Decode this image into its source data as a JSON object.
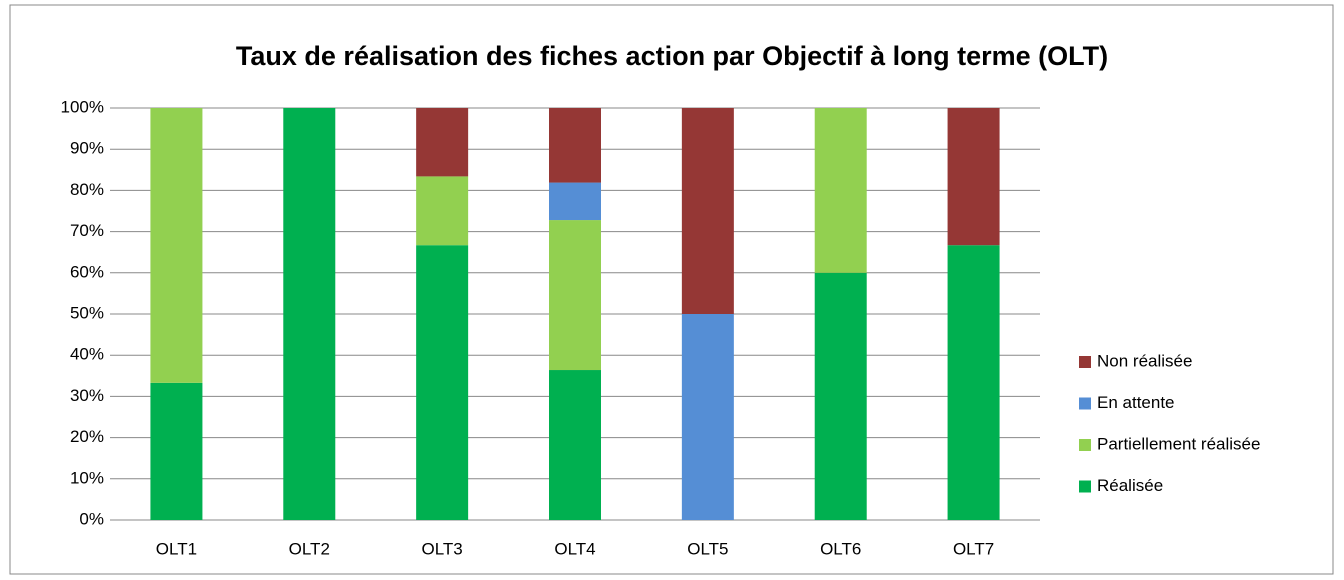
{
  "chart_data": {
    "type": "stacked_bar",
    "title": "Taux de réalisation des fiches action par Objectif à long terme (OLT)",
    "categories": [
      "OLT1",
      "OLT2",
      "OLT3",
      "OLT4",
      "OLT5",
      "OLT6",
      "OLT7"
    ],
    "series": [
      {
        "name": "Réalisée",
        "color": "#00b050",
        "values": [
          33.3,
          100,
          66.7,
          36.4,
          0,
          60,
          66.7
        ]
      },
      {
        "name": "Partiellement réalisée",
        "color": "#92d050",
        "values": [
          66.7,
          0,
          16.7,
          36.4,
          0,
          40,
          0
        ]
      },
      {
        "name": "En attente",
        "color": "#558ed5",
        "values": [
          0,
          0,
          0,
          9.1,
          50,
          0,
          0
        ]
      },
      {
        "name": "Non réalisée",
        "color": "#953735",
        "values": [
          0,
          0,
          16.6,
          18.1,
          50,
          0,
          33.3
        ]
      }
    ],
    "ylim": [
      0,
      100
    ],
    "yticks": [
      {
        "value": 0,
        "label": "0%"
      },
      {
        "value": 10,
        "label": "10%"
      },
      {
        "value": 20,
        "label": "20%"
      },
      {
        "value": 30,
        "label": "30%"
      },
      {
        "value": 40,
        "label": "40%"
      },
      {
        "value": 50,
        "label": "50%"
      },
      {
        "value": 60,
        "label": "60%"
      },
      {
        "value": 70,
        "label": "70%"
      },
      {
        "value": 80,
        "label": "80%"
      },
      {
        "value": 90,
        "label": "90%"
      },
      {
        "value": 100,
        "label": "100%"
      }
    ],
    "grid": true,
    "legend": "right"
  }
}
